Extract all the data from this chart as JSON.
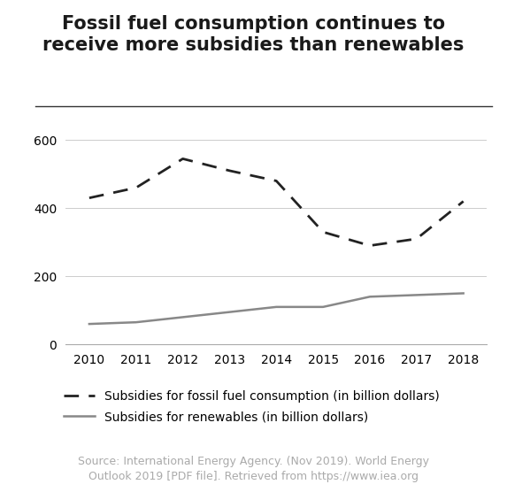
{
  "title_line1": "Fossil fuel consumption continues to",
  "title_line2": "receive more subsidies than renewables",
  "years": [
    2010,
    2011,
    2012,
    2013,
    2014,
    2015,
    2016,
    2017,
    2018
  ],
  "fossil_fuel": [
    430,
    460,
    545,
    510,
    480,
    330,
    290,
    310,
    420
  ],
  "renewables": [
    60,
    65,
    80,
    95,
    110,
    110,
    140,
    145,
    150
  ],
  "fossil_color": "#222222",
  "renewables_color": "#888888",
  "legend_fossil": "Subsidies for fossil fuel consumption (in billion dollars)",
  "legend_renewables": "Subsidies for renewables (in billion dollars)",
  "source_text": "Source: International Energy Agency. (Nov 2019). World Energy\nOutlook 2019 [PDF file]. Retrieved from https://www.iea.org",
  "ylim": [
    0,
    650
  ],
  "yticks": [
    0,
    200,
    400,
    600
  ],
  "background_color": "#ffffff",
  "title_fontsize": 15,
  "legend_fontsize": 10,
  "source_fontsize": 9,
  "tick_fontsize": 10
}
